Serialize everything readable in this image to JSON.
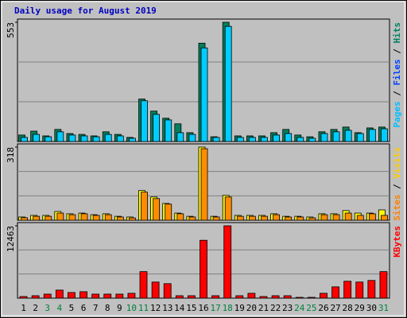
{
  "chart_data": {
    "type": "bar",
    "title": "Daily usage for August 2019",
    "categories": [
      "1",
      "2",
      "3",
      "4",
      "5",
      "6",
      "7",
      "8",
      "9",
      "10",
      "11",
      "12",
      "13",
      "14",
      "15",
      "16",
      "17",
      "18",
      "19",
      "20",
      "21",
      "22",
      "23",
      "24",
      "25",
      "26",
      "27",
      "28",
      "29",
      "30",
      "31"
    ],
    "category_colors": [
      "#000000",
      "#000000",
      "#008040",
      "#008040",
      "#000000",
      "#000000",
      "#000000",
      "#000000",
      "#000000",
      "#008040",
      "#008040",
      "#000000",
      "#000000",
      "#000000",
      "#000000",
      "#000000",
      "#008040",
      "#008040",
      "#000000",
      "#000000",
      "#000000",
      "#000000",
      "#000000",
      "#008040",
      "#008040",
      "#000000",
      "#000000",
      "#000000",
      "#000000",
      "#000000",
      "#008040"
    ],
    "panels": [
      {
        "ylim": [
          0,
          553
        ],
        "yticks": [
          553
        ],
        "legend": [
          {
            "text": "Pages",
            "color": "#00c0ff"
          },
          {
            "text": " / ",
            "color": "#000000"
          },
          {
            "text": "Files",
            "color": "#0040ff"
          },
          {
            "text": " / ",
            "color": "#000000"
          },
          {
            "text": "Hits",
            "color": "#008060"
          }
        ],
        "series": [
          {
            "color": "#00805c",
            "values": [
              30,
              48,
              26,
              56,
              37,
              33,
              26,
              45,
              33,
              19,
              197,
              141,
              108,
              82,
              41,
              456,
              22,
              553,
              26,
              26,
              26,
              41,
              56,
              30,
              22,
              45,
              56,
              67,
              41,
              63,
              67
            ]
          },
          {
            "color": "#00ccff",
            "values": [
              19,
              33,
              22,
              45,
              30,
              26,
              22,
              33,
              26,
              15,
              189,
              126,
              100,
              41,
              33,
              434,
              19,
              534,
              19,
              19,
              19,
              30,
              37,
              19,
              15,
              37,
              45,
              52,
              37,
              56,
              59
            ]
          }
        ]
      },
      {
        "ylim": [
          0,
          318
        ],
        "yticks": [
          318
        ],
        "legend": [
          {
            "text": "Sites",
            "color": "#ff8000"
          },
          {
            "text": " / ",
            "color": "#000000"
          },
          {
            "text": "Visits",
            "color": "#ffcc00"
          }
        ],
        "series": [
          {
            "color": "#ffff00",
            "values": [
              14,
              21,
              21,
              38,
              28,
              31,
              24,
              28,
              17,
              14,
              129,
              101,
              73,
              31,
              17,
              318,
              17,
              108,
              21,
              21,
              21,
              28,
              17,
              17,
              14,
              28,
              28,
              42,
              31,
              31,
              45
            ]
          },
          {
            "color": "#ff8c00",
            "values": [
              11,
              17,
              17,
              31,
              24,
              28,
              21,
              24,
              14,
              10,
              122,
              94,
              70,
              28,
              14,
              311,
              14,
              101,
              17,
              17,
              17,
              24,
              14,
              14,
              10,
              24,
              24,
              31,
              21,
              28,
              21
            ]
          }
        ]
      },
      {
        "ylim": [
          0,
          12463
        ],
        "yticks": [
          12463
        ],
        "legend": [
          {
            "text": "KBytes",
            "color": "#ff0000"
          }
        ],
        "series": [
          {
            "color": "#ff0000",
            "values": [
              277,
              415,
              692,
              1385,
              969,
              1108,
              692,
              692,
              692,
              831,
              4570,
              2770,
              2493,
              415,
              415,
              9970,
              415,
              12463,
              415,
              831,
              277,
              415,
              415,
              138,
              138,
              831,
              1939,
              2908,
              2770,
              3047,
              4570
            ]
          }
        ]
      }
    ]
  }
}
